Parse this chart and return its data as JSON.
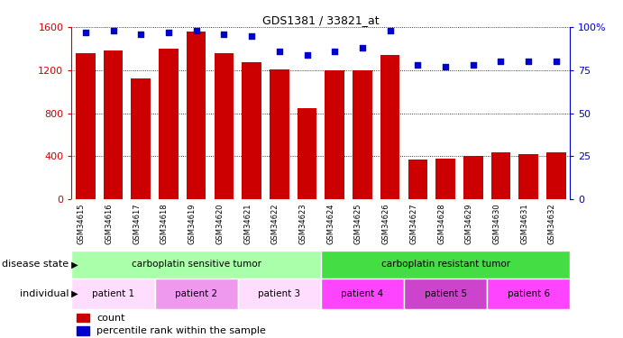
{
  "title": "GDS1381 / 33821_at",
  "samples": [
    "GSM34615",
    "GSM34616",
    "GSM34617",
    "GSM34618",
    "GSM34619",
    "GSM34620",
    "GSM34621",
    "GSM34622",
    "GSM34623",
    "GSM34624",
    "GSM34625",
    "GSM34626",
    "GSM34627",
    "GSM34628",
    "GSM34629",
    "GSM34630",
    "GSM34631",
    "GSM34632"
  ],
  "counts": [
    1360,
    1380,
    1120,
    1400,
    1560,
    1360,
    1270,
    1210,
    850,
    1200,
    1200,
    1340,
    370,
    380,
    400,
    440,
    420,
    440
  ],
  "percentiles": [
    97,
    98,
    96,
    97,
    98,
    96,
    95,
    86,
    84,
    86,
    88,
    98,
    78,
    77,
    78,
    80,
    80,
    80
  ],
  "bar_color": "#cc0000",
  "dot_color": "#0000cc",
  "ylim_left": [
    0,
    1600
  ],
  "ylim_right": [
    0,
    100
  ],
  "yticks_left": [
    0,
    400,
    800,
    1200,
    1600
  ],
  "yticks_right": [
    0,
    25,
    50,
    75,
    100
  ],
  "disease_state_groups": [
    {
      "label": "carboplatin sensitive tumor",
      "start": 0,
      "end": 9,
      "color": "#aaffaa"
    },
    {
      "label": "carboplatin resistant tumor",
      "start": 9,
      "end": 18,
      "color": "#44dd44"
    }
  ],
  "individual_groups": [
    {
      "label": "patient 1",
      "start": 0,
      "end": 3,
      "color": "#ffddff"
    },
    {
      "label": "patient 2",
      "start": 3,
      "end": 6,
      "color": "#ee99ee"
    },
    {
      "label": "patient 3",
      "start": 6,
      "end": 9,
      "color": "#ffddff"
    },
    {
      "label": "patient 4",
      "start": 9,
      "end": 12,
      "color": "#ff44ff"
    },
    {
      "label": "patient 5",
      "start": 12,
      "end": 15,
      "color": "#cc44cc"
    },
    {
      "label": "patient 6",
      "start": 15,
      "end": 18,
      "color": "#ff44ff"
    }
  ],
  "disease_label": "disease state",
  "individual_label": "individual",
  "legend_count_label": "count",
  "legend_pct_label": "percentile rank within the sample",
  "xtick_bg": "#cccccc",
  "plot_bg": "#ffffff"
}
